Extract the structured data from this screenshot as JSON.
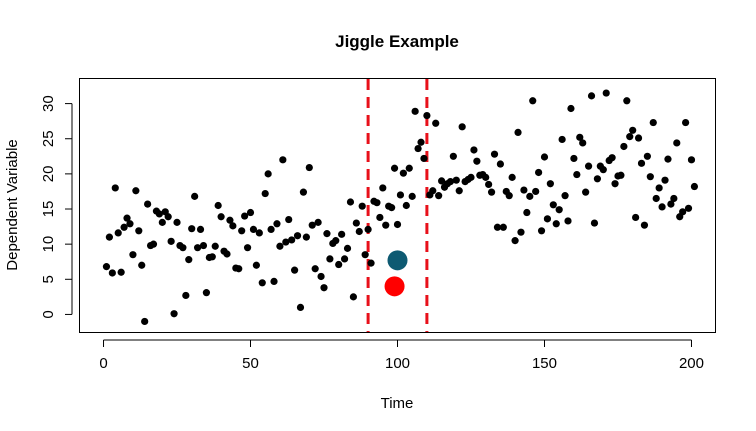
{
  "chart_data": {
    "type": "scatter",
    "title": "Jiggle Example",
    "xlabel": "Time",
    "ylabel": "Dependent Variable",
    "xlim": [
      -8,
      208
    ],
    "ylim": [
      -2.5,
      33.5
    ],
    "xticks": [
      0,
      50,
      100,
      150,
      200
    ],
    "yticks": [
      0,
      5,
      10,
      15,
      20,
      25,
      30
    ],
    "grid": false,
    "legend": "none",
    "point_color": "#000000",
    "vlines": [
      {
        "x": 90,
        "color": "#e8101a",
        "style": "dashed"
      },
      {
        "x": 110,
        "color": "#e8101a",
        "style": "dashed"
      }
    ],
    "highlights": [
      {
        "x": 100,
        "y": 7.7,
        "color": "#0e5a72"
      },
      {
        "x": 99,
        "y": 4.0,
        "color": "#ff0000"
      }
    ],
    "series": [
      {
        "points": [
          [
            1,
            6.8
          ],
          [
            2,
            11
          ],
          [
            3,
            5.9
          ],
          [
            4,
            18
          ],
          [
            5,
            11.6
          ],
          [
            6,
            6
          ],
          [
            7,
            12.4
          ],
          [
            8,
            13.7
          ],
          [
            9,
            12.9
          ],
          [
            10,
            8.5
          ],
          [
            11,
            17.6
          ],
          [
            12,
            11.9
          ],
          [
            13,
            7
          ],
          [
            14,
            -1
          ],
          [
            15,
            15.7
          ],
          [
            16,
            9.8
          ],
          [
            17,
            10
          ],
          [
            18,
            14.7
          ],
          [
            19,
            14.3
          ],
          [
            20,
            13.1
          ],
          [
            21,
            14.6
          ],
          [
            22,
            13.9
          ],
          [
            23,
            10.4
          ],
          [
            24,
            0.1
          ],
          [
            25,
            13.1
          ],
          [
            26,
            9.8
          ],
          [
            27,
            9.5
          ],
          [
            28,
            2.7
          ],
          [
            29,
            7.8
          ],
          [
            30,
            12.2
          ],
          [
            31,
            16.8
          ],
          [
            32,
            9.5
          ],
          [
            33,
            12.1
          ],
          [
            34,
            9.8
          ],
          [
            35,
            3.1
          ],
          [
            36,
            8.1
          ],
          [
            37,
            8.2
          ],
          [
            38,
            9.7
          ],
          [
            39,
            15.5
          ],
          [
            40,
            13.9
          ],
          [
            41,
            9
          ],
          [
            42,
            8.6
          ],
          [
            43,
            13.4
          ],
          [
            44,
            12.6
          ],
          [
            45,
            6.6
          ],
          [
            46,
            6.5
          ],
          [
            47,
            11.9
          ],
          [
            48,
            14
          ],
          [
            49,
            9.5
          ],
          [
            50,
            14.5
          ],
          [
            51,
            12.1
          ],
          [
            52,
            7
          ],
          [
            53,
            11.6
          ],
          [
            54,
            4.5
          ],
          [
            55,
            17.2
          ],
          [
            56,
            20
          ],
          [
            57,
            12.1
          ],
          [
            58,
            4.7
          ],
          [
            59,
            12.9
          ],
          [
            60,
            9.7
          ],
          [
            61,
            22
          ],
          [
            62,
            10.3
          ],
          [
            63,
            13.5
          ],
          [
            64,
            10.6
          ],
          [
            65,
            6.3
          ],
          [
            66,
            11.2
          ],
          [
            67,
            1
          ],
          [
            68,
            17.4
          ],
          [
            69,
            11
          ],
          [
            70,
            20.9
          ],
          [
            71,
            12.7
          ],
          [
            72,
            6.5
          ],
          [
            73,
            13.1
          ],
          [
            74,
            5.4
          ],
          [
            75,
            3.8
          ],
          [
            76,
            11.5
          ],
          [
            77,
            7.9
          ],
          [
            78,
            10.1
          ],
          [
            79,
            10.5
          ],
          [
            80,
            7.1
          ],
          [
            81,
            11.4
          ],
          [
            82,
            7.9
          ],
          [
            83,
            9.4
          ],
          [
            84,
            16
          ],
          [
            85,
            2.5
          ],
          [
            86,
            13
          ],
          [
            87,
            11.8
          ],
          [
            88,
            15.4
          ],
          [
            89,
            8.5
          ],
          [
            90,
            12.1
          ],
          [
            91,
            7.3
          ],
          [
            92,
            16.1
          ],
          [
            93,
            15.9
          ],
          [
            94,
            13.8
          ],
          [
            95,
            18
          ],
          [
            96,
            12.7
          ],
          [
            97,
            15.4
          ],
          [
            98,
            15.2
          ],
          [
            99,
            20.8
          ],
          [
            100,
            12.8
          ],
          [
            101,
            17
          ],
          [
            102,
            20.1
          ],
          [
            103,
            15.5
          ],
          [
            104,
            20.8
          ],
          [
            105,
            16.8
          ],
          [
            106,
            28.9
          ],
          [
            107,
            23.6
          ],
          [
            108,
            24.5
          ],
          [
            109,
            22.2
          ],
          [
            110,
            28.3
          ],
          [
            111,
            17
          ],
          [
            112,
            17.6
          ],
          [
            113,
            27.2
          ],
          [
            114,
            16.9
          ],
          [
            115,
            19
          ],
          [
            116,
            18.1
          ],
          [
            117,
            18.6
          ],
          [
            118,
            18.9
          ],
          [
            119,
            22.5
          ],
          [
            120,
            19.1
          ],
          [
            121,
            17.6
          ],
          [
            122,
            26.7
          ],
          [
            123,
            18.9
          ],
          [
            124,
            19.2
          ],
          [
            125,
            19.5
          ],
          [
            126,
            23.4
          ],
          [
            127,
            21.8
          ],
          [
            128,
            19.8
          ],
          [
            129,
            19.9
          ],
          [
            130,
            19.5
          ],
          [
            131,
            18.5
          ],
          [
            132,
            17.4
          ],
          [
            133,
            22.8
          ],
          [
            134,
            12.4
          ],
          [
            135,
            21.4
          ],
          [
            136,
            12.4
          ],
          [
            137,
            17.5
          ],
          [
            138,
            16.9
          ],
          [
            139,
            19.5
          ],
          [
            140,
            10.5
          ],
          [
            141,
            25.9
          ],
          [
            142,
            11.7
          ],
          [
            143,
            17.7
          ],
          [
            144,
            14.5
          ],
          [
            145,
            16.8
          ],
          [
            146,
            30.4
          ],
          [
            147,
            17.5
          ],
          [
            148,
            20.2
          ],
          [
            149,
            11.9
          ],
          [
            150,
            22.4
          ],
          [
            151,
            13.6
          ],
          [
            152,
            18.6
          ],
          [
            153,
            15.6
          ],
          [
            154,
            12.9
          ],
          [
            155,
            14.9
          ],
          [
            156,
            24.9
          ],
          [
            157,
            16.9
          ],
          [
            158,
            13.3
          ],
          [
            159,
            29.3
          ],
          [
            160,
            22.2
          ],
          [
            161,
            19.9
          ],
          [
            162,
            25.2
          ],
          [
            163,
            24.4
          ],
          [
            164,
            17.4
          ],
          [
            165,
            21.1
          ],
          [
            166,
            31.1
          ],
          [
            167,
            13
          ],
          [
            168,
            19.3
          ],
          [
            169,
            21.1
          ],
          [
            170,
            20.6
          ],
          [
            171,
            31.5
          ],
          [
            172,
            21.9
          ],
          [
            173,
            22.3
          ],
          [
            174,
            18.6
          ],
          [
            175,
            19.7
          ],
          [
            176,
            19.8
          ],
          [
            177,
            23.9
          ],
          [
            178,
            30.4
          ],
          [
            179,
            25.3
          ],
          [
            180,
            26.2
          ],
          [
            181,
            13.8
          ],
          [
            182,
            25.1
          ],
          [
            183,
            21.5
          ],
          [
            184,
            12.7
          ],
          [
            185,
            22.5
          ],
          [
            186,
            19.6
          ],
          [
            187,
            27.3
          ],
          [
            188,
            16.5
          ],
          [
            189,
            18
          ],
          [
            190,
            15.3
          ],
          [
            191,
            19.1
          ],
          [
            192,
            22.1
          ],
          [
            193,
            15.7
          ],
          [
            194,
            16.5
          ],
          [
            195,
            24.4
          ],
          [
            196,
            13.9
          ],
          [
            197,
            14.6
          ],
          [
            198,
            27.3
          ],
          [
            199,
            15.1
          ],
          [
            200,
            22
          ],
          [
            201,
            18.2
          ]
        ]
      }
    ]
  }
}
